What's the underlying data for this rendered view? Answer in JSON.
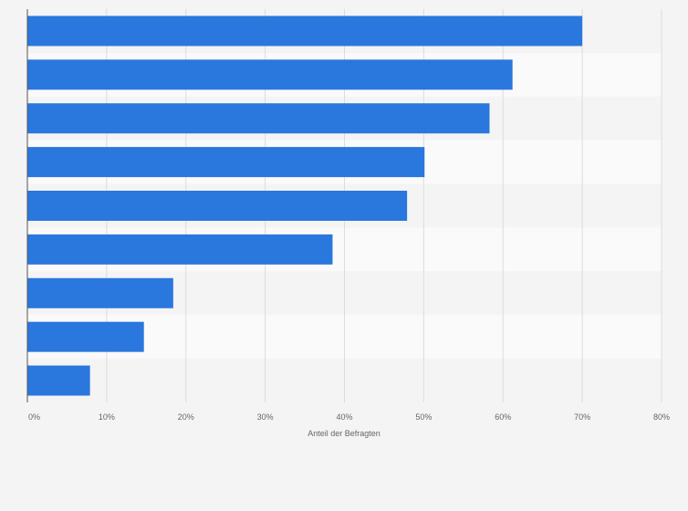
{
  "chart_data": {
    "type": "bar",
    "orientation": "horizontal",
    "title": "",
    "xlabel": "Anteil der Befragten",
    "ylabel": "",
    "xlim": [
      0,
      80
    ],
    "x_ticks": [
      "0%",
      "10%",
      "20%",
      "30%",
      "40%",
      "50%",
      "60%",
      "70%",
      "80%"
    ],
    "categories": [
      "",
      "",
      "",
      "",
      "",
      "",
      "",
      "",
      ""
    ],
    "values": [
      70,
      61.2,
      58.3,
      50.1,
      47.9,
      38.5,
      18.4,
      14.7,
      7.9
    ],
    "grid": true,
    "legend": "none",
    "bar_color": "#2a77dd",
    "band_colors": [
      "#f4f4f4",
      "#fafafa"
    ],
    "background_color": "#f4f4f4"
  }
}
